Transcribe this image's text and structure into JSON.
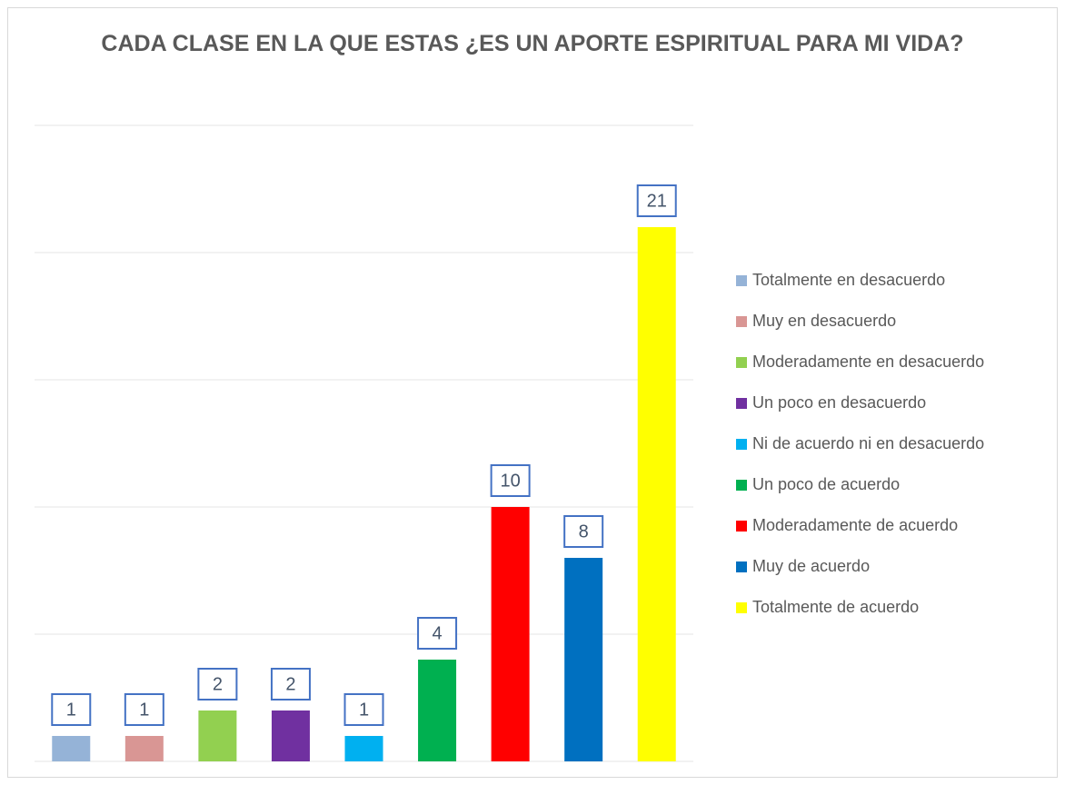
{
  "chart_data": {
    "type": "bar",
    "title": "CADA CLASE EN LA QUE ESTAS ¿ES UN APORTE ESPIRITUAL PARA MI VIDA?",
    "series": [
      {
        "name": "Totalmente en desacuerdo",
        "color": "#95b3d7",
        "values": [
          1
        ]
      },
      {
        "name": "Muy en desacuerdo",
        "color": "#d99694",
        "values": [
          1
        ]
      },
      {
        "name": "Moderadamente en desacuerdo",
        "color": "#92d050",
        "values": [
          2
        ]
      },
      {
        "name": "Un poco en desacuerdo",
        "color": "#7030a0",
        "values": [
          2
        ]
      },
      {
        "name": "Ni de acuerdo ni en desacuerdo",
        "color": "#00b0f0",
        "values": [
          1
        ]
      },
      {
        "name": "Un poco de acuerdo",
        "color": "#00b050",
        "values": [
          4
        ]
      },
      {
        "name": "Moderadamente de acuerdo",
        "color": "#ff0000",
        "values": [
          10
        ]
      },
      {
        "name": "Muy de acuerdo",
        "color": "#0070c0",
        "values": [
          8
        ]
      },
      {
        "name": "Totalmente de acuerdo",
        "color": "#ffff00",
        "values": [
          21
        ]
      }
    ],
    "ylim": [
      0,
      25
    ],
    "yticks": [
      0,
      5,
      10,
      15,
      20,
      25
    ],
    "grid": true,
    "legend": "right"
  }
}
